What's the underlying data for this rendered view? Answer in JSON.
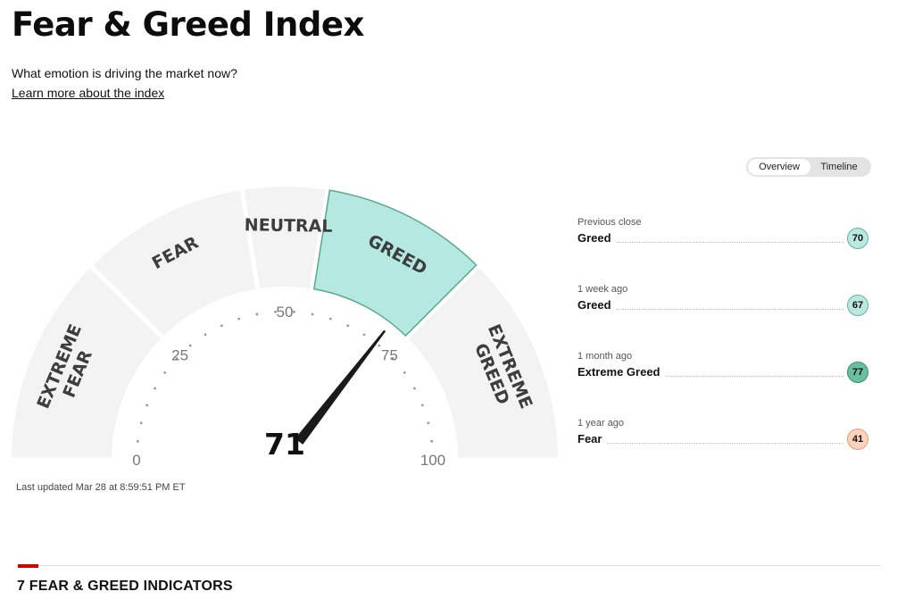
{
  "header": {
    "title": "Fear & Greed Index",
    "subtitle": "What emotion is driving the market now?",
    "learn_more": "Learn more about the index"
  },
  "gauge": {
    "value": 71,
    "value_label": "71",
    "active_zone": "greed",
    "zones": [
      {
        "id": "extreme-fear",
        "lines": [
          "EXTREME",
          "FEAR"
        ],
        "from": 0,
        "to": 25,
        "active": false
      },
      {
        "id": "fear",
        "lines": [
          "FEAR"
        ],
        "from": 25,
        "to": 45,
        "active": false
      },
      {
        "id": "neutral",
        "lines": [
          "NEUTRAL"
        ],
        "from": 45,
        "to": 55,
        "active": false
      },
      {
        "id": "greed",
        "lines": [
          "GREED"
        ],
        "from": 55,
        "to": 75,
        "active": true
      },
      {
        "id": "extreme-greed",
        "lines": [
          "EXTREME",
          "GREED"
        ],
        "from": 75,
        "to": 100,
        "active": false
      }
    ],
    "ticks": [
      {
        "value": 0,
        "label": "0"
      },
      {
        "value": 25,
        "label": "25"
      },
      {
        "value": 50,
        "label": "50"
      },
      {
        "value": 75,
        "label": "75"
      },
      {
        "value": 100,
        "label": "100"
      }
    ],
    "last_updated": "Last updated Mar 28 at 8:59:51 PM ET"
  },
  "toggle": {
    "overview": "Overview",
    "timeline": "Timeline",
    "selected": "Overview"
  },
  "history": [
    {
      "label": "Previous close",
      "rating": "Greed",
      "value": "70",
      "fill": "#b9e8e1",
      "border": "#5fb3a4"
    },
    {
      "label": "1 week ago",
      "rating": "Greed",
      "value": "67",
      "fill": "#b9e8e1",
      "border": "#5fb3a4"
    },
    {
      "label": "1 month ago",
      "rating": "Extreme Greed",
      "value": "77",
      "fill": "#6abf9e",
      "border": "#3d8f72"
    },
    {
      "label": "1 year ago",
      "rating": "Fear",
      "value": "41",
      "fill": "#fbd3bc",
      "border": "#e99a72"
    }
  ],
  "colors": {
    "zone_bg": "#f3f3f3",
    "active_zone": "#b4e8e0",
    "active_zone_border": "#5aa98e",
    "needle": "#1a1a1a",
    "section_accent": "#cc0000"
  },
  "section": {
    "title": "7 FEAR & GREED INDICATORS"
  }
}
